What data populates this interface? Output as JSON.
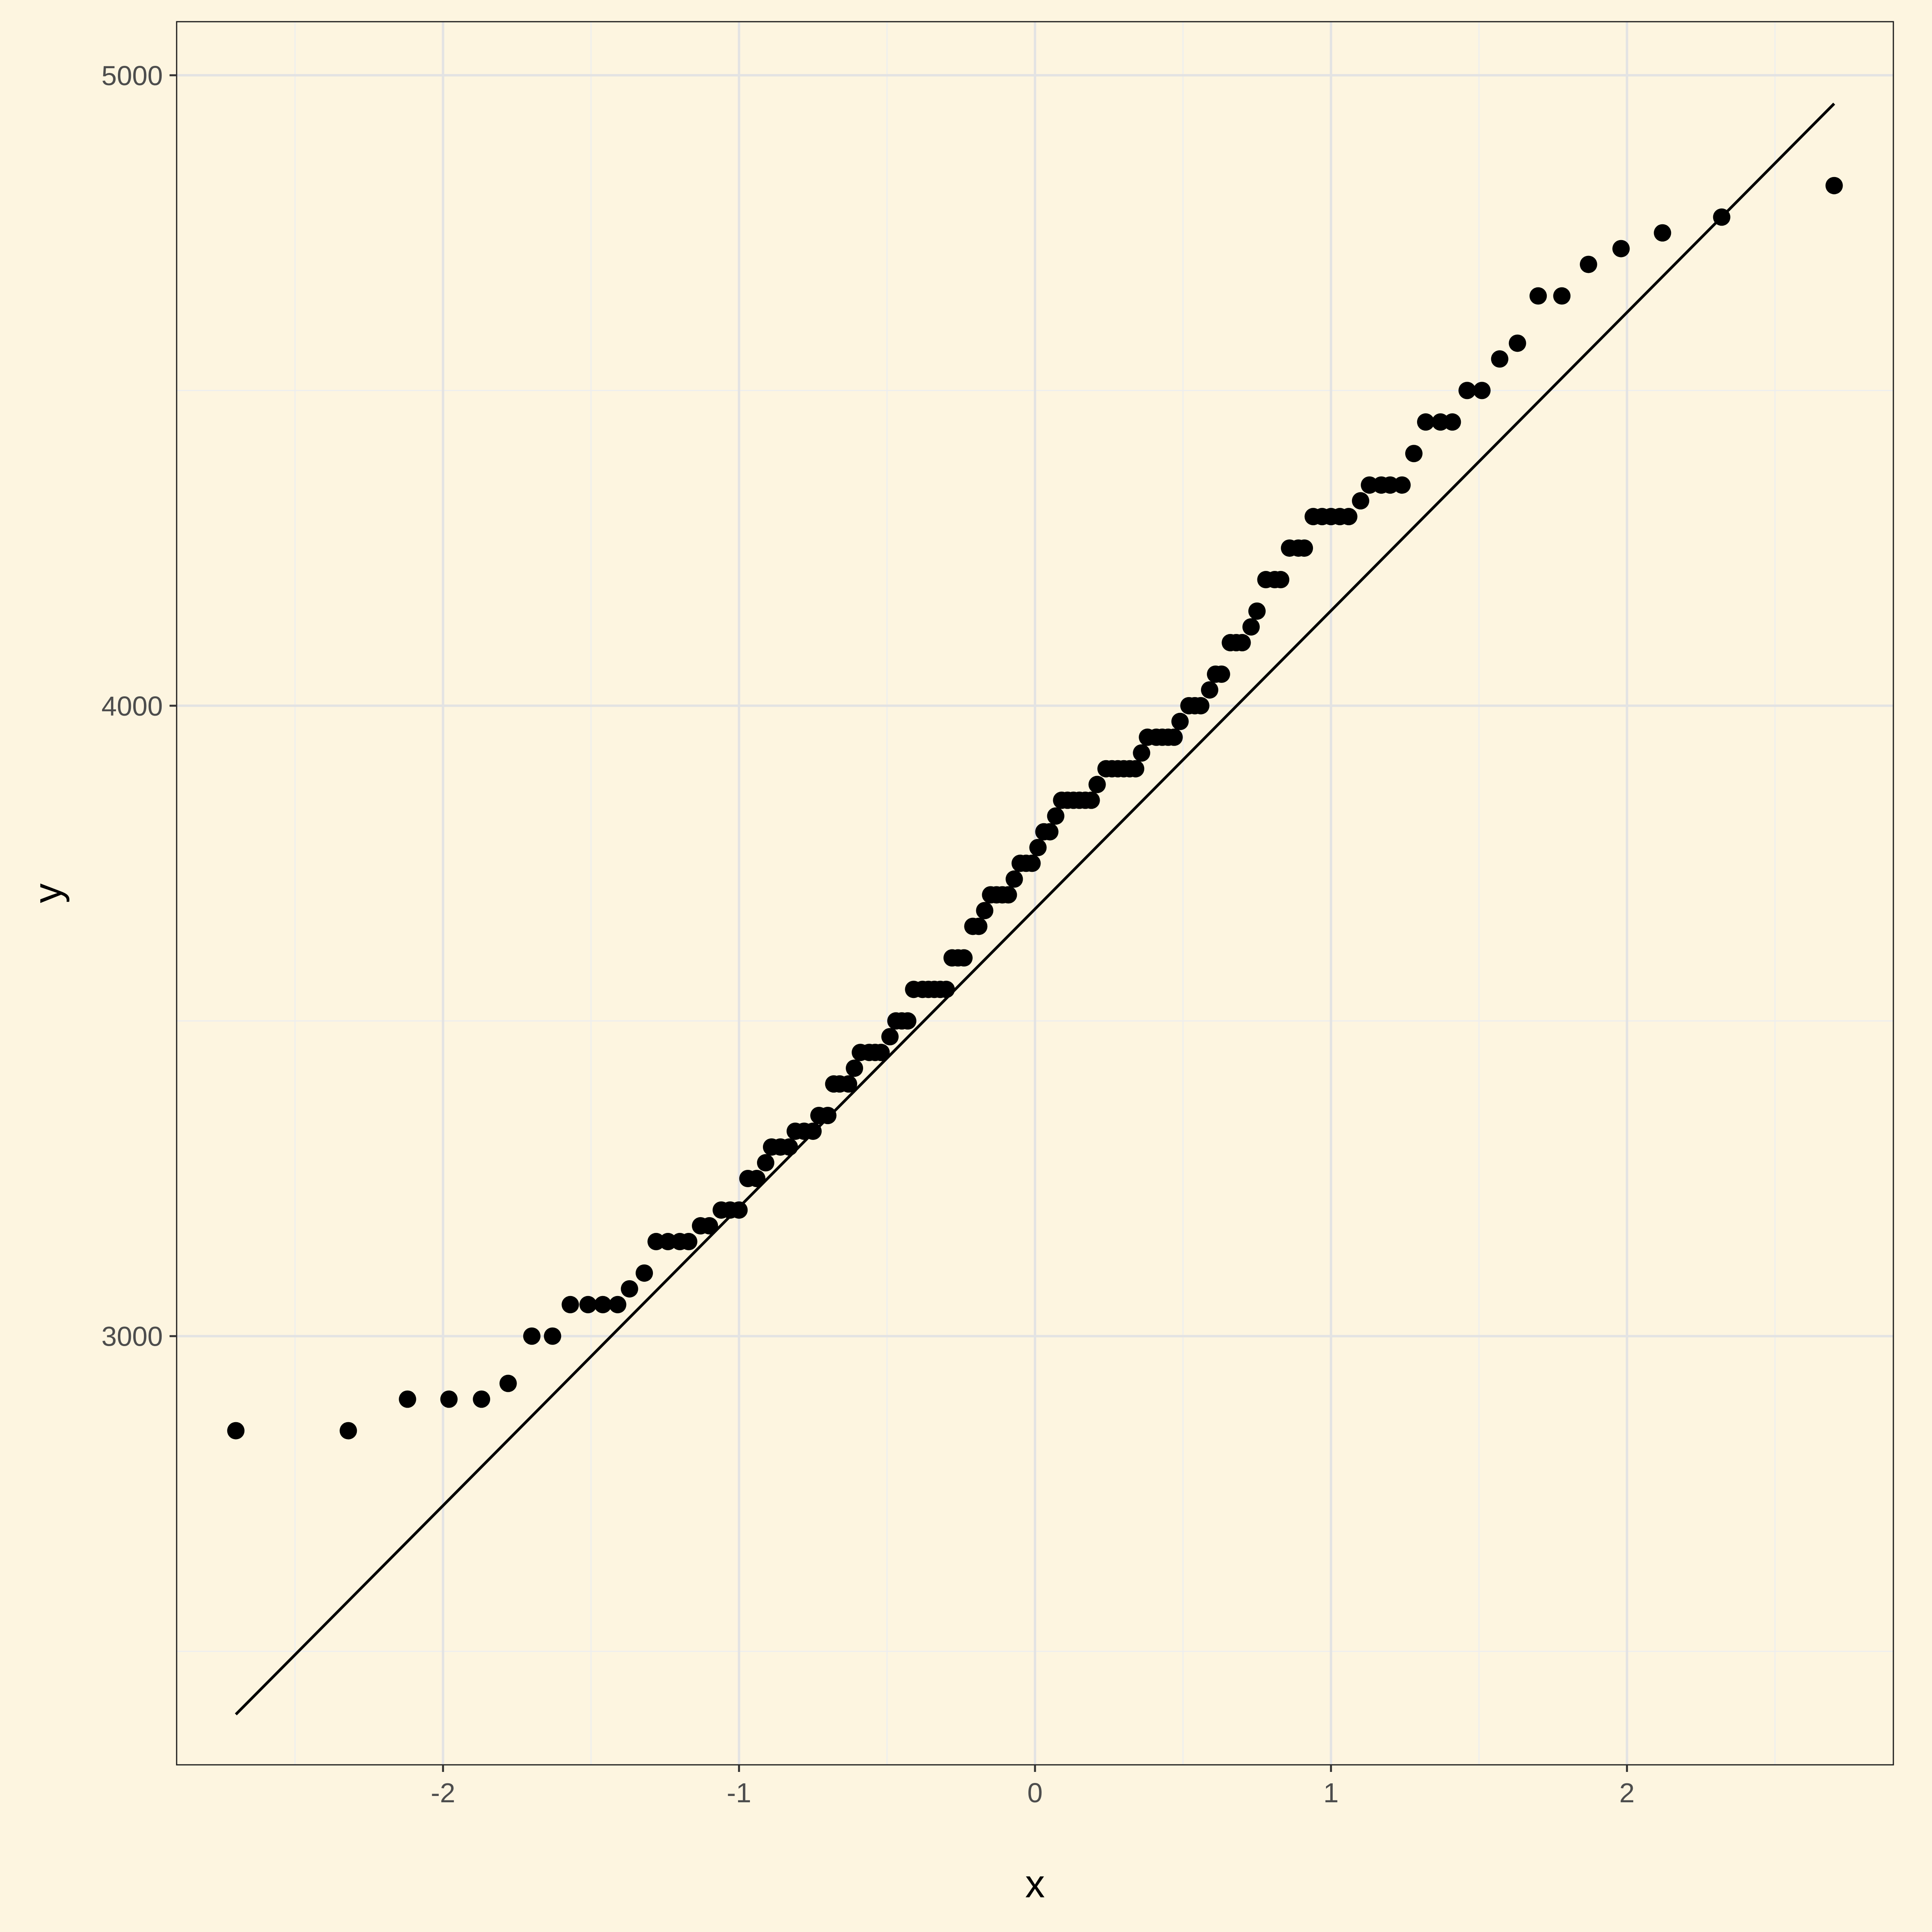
{
  "colors": {
    "background": "#fdf5e0",
    "panel_border": "#1a1a1a",
    "grid_major": "#e3e3e3",
    "grid_minor": "#eeeeee",
    "point": "#000000",
    "line": "#000000",
    "tick_text": "#4d4d4d"
  },
  "chart_data": {
    "type": "scatter",
    "subtype": "qq-plot",
    "title": "",
    "xlabel": "x",
    "ylabel": "y",
    "xlim": [
      -2.9,
      2.9
    ],
    "ylim": [
      2320,
      5085
    ],
    "x_ticks": [
      -2,
      -1,
      0,
      1,
      2
    ],
    "x_tick_labels": [
      "-2",
      "-1",
      "0",
      "1",
      "2"
    ],
    "x_minor_ticks": [
      -2.5,
      -1.5,
      -0.5,
      0.5,
      1.5,
      2.5
    ],
    "y_ticks": [
      3000,
      4000,
      5000
    ],
    "y_tick_labels": [
      "3000",
      "4000",
      "5000"
    ],
    "y_minor_ticks": [
      2500,
      3500,
      4500
    ],
    "grid": true,
    "legend": "none",
    "reference_line": {
      "x": [
        -2.7,
        2.7
      ],
      "y": [
        2400,
        4955
      ]
    },
    "points": [
      [
        -2.7,
        2850
      ],
      [
        -2.32,
        2850
      ],
      [
        -2.12,
        2900
      ],
      [
        -1.98,
        2900
      ],
      [
        -1.87,
        2900
      ],
      [
        -1.78,
        2925
      ],
      [
        -1.7,
        3000
      ],
      [
        -1.63,
        3000
      ],
      [
        -1.57,
        3050
      ],
      [
        -1.51,
        3050
      ],
      [
        -1.46,
        3050
      ],
      [
        -1.41,
        3050
      ],
      [
        -1.37,
        3075
      ],
      [
        -1.32,
        3100
      ],
      [
        -1.28,
        3150
      ],
      [
        -1.24,
        3150
      ],
      [
        -1.2,
        3150
      ],
      [
        -1.17,
        3150
      ],
      [
        -1.13,
        3175
      ],
      [
        -1.1,
        3175
      ],
      [
        -1.06,
        3200
      ],
      [
        -1.03,
        3200
      ],
      [
        -1.0,
        3200
      ],
      [
        -0.97,
        3250
      ],
      [
        -0.94,
        3250
      ],
      [
        -0.91,
        3275
      ],
      [
        -0.89,
        3300
      ],
      [
        -0.86,
        3300
      ],
      [
        -0.83,
        3300
      ],
      [
        -0.81,
        3325
      ],
      [
        -0.78,
        3325
      ],
      [
        -0.75,
        3325
      ],
      [
        -0.73,
        3350
      ],
      [
        -0.7,
        3350
      ],
      [
        -0.68,
        3400
      ],
      [
        -0.66,
        3400
      ],
      [
        -0.63,
        3400
      ],
      [
        -0.61,
        3425
      ],
      [
        -0.59,
        3450
      ],
      [
        -0.56,
        3450
      ],
      [
        -0.54,
        3450
      ],
      [
        -0.52,
        3450
      ],
      [
        -0.49,
        3475
      ],
      [
        -0.47,
        3500
      ],
      [
        -0.45,
        3500
      ],
      [
        -0.43,
        3500
      ],
      [
        -0.41,
        3550
      ],
      [
        -0.38,
        3550
      ],
      [
        -0.36,
        3550
      ],
      [
        -0.34,
        3550
      ],
      [
        -0.32,
        3550
      ],
      [
        -0.3,
        3550
      ],
      [
        -0.28,
        3600
      ],
      [
        -0.26,
        3600
      ],
      [
        -0.24,
        3600
      ],
      [
        -0.21,
        3650
      ],
      [
        -0.19,
        3650
      ],
      [
        -0.17,
        3675
      ],
      [
        -0.15,
        3700
      ],
      [
        -0.13,
        3700
      ],
      [
        -0.11,
        3700
      ],
      [
        -0.09,
        3700
      ],
      [
        -0.07,
        3725
      ],
      [
        -0.05,
        3750
      ],
      [
        -0.03,
        3750
      ],
      [
        -0.01,
        3750
      ],
      [
        0.01,
        3775
      ],
      [
        0.03,
        3800
      ],
      [
        0.05,
        3800
      ],
      [
        0.07,
        3825
      ],
      [
        0.09,
        3850
      ],
      [
        0.11,
        3850
      ],
      [
        0.13,
        3850
      ],
      [
        0.15,
        3850
      ],
      [
        0.17,
        3850
      ],
      [
        0.19,
        3850
      ],
      [
        0.21,
        3875
      ],
      [
        0.24,
        3900
      ],
      [
        0.26,
        3900
      ],
      [
        0.28,
        3900
      ],
      [
        0.3,
        3900
      ],
      [
        0.32,
        3900
      ],
      [
        0.34,
        3900
      ],
      [
        0.36,
        3925
      ],
      [
        0.38,
        3950
      ],
      [
        0.41,
        3950
      ],
      [
        0.43,
        3950
      ],
      [
        0.45,
        3950
      ],
      [
        0.47,
        3950
      ],
      [
        0.49,
        3975
      ],
      [
        0.52,
        4000
      ],
      [
        0.54,
        4000
      ],
      [
        0.56,
        4000
      ],
      [
        0.59,
        4025
      ],
      [
        0.61,
        4050
      ],
      [
        0.63,
        4050
      ],
      [
        0.66,
        4100
      ],
      [
        0.68,
        4100
      ],
      [
        0.7,
        4100
      ],
      [
        0.73,
        4125
      ],
      [
        0.75,
        4150
      ],
      [
        0.78,
        4200
      ],
      [
        0.81,
        4200
      ],
      [
        0.83,
        4200
      ],
      [
        0.86,
        4250
      ],
      [
        0.89,
        4250
      ],
      [
        0.91,
        4250
      ],
      [
        0.94,
        4300
      ],
      [
        0.97,
        4300
      ],
      [
        1.0,
        4300
      ],
      [
        1.03,
        4300
      ],
      [
        1.06,
        4300
      ],
      [
        1.1,
        4325
      ],
      [
        1.13,
        4350
      ],
      [
        1.17,
        4350
      ],
      [
        1.2,
        4350
      ],
      [
        1.24,
        4350
      ],
      [
        1.28,
        4400
      ],
      [
        1.32,
        4450
      ],
      [
        1.37,
        4450
      ],
      [
        1.41,
        4450
      ],
      [
        1.46,
        4500
      ],
      [
        1.51,
        4500
      ],
      [
        1.57,
        4550
      ],
      [
        1.63,
        4575
      ],
      [
        1.7,
        4650
      ],
      [
        1.78,
        4650
      ],
      [
        1.87,
        4700
      ],
      [
        1.98,
        4725
      ],
      [
        2.12,
        4750
      ],
      [
        2.32,
        4775
      ],
      [
        2.7,
        4825
      ]
    ]
  }
}
